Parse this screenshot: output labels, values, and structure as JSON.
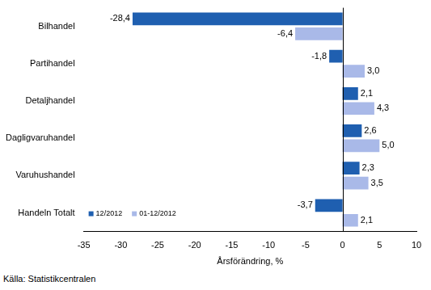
{
  "chart_data": {
    "type": "bar",
    "orientation": "horizontal",
    "categories": [
      "Bilhandel",
      "Partihandel",
      "Detaljhandel",
      "Dagligvaruhandel",
      "Varuhushandel",
      "Handeln Totalt"
    ],
    "series": [
      {
        "name": "12/2012",
        "color": "#1f5fb0",
        "values": [
          -28.4,
          -1.8,
          2.1,
          2.6,
          2.3,
          -3.7
        ],
        "value_labels": [
          "-28,4",
          "-1,8",
          "2,1",
          "2,6",
          "2,3",
          "-3,7"
        ]
      },
      {
        "name": "01-12/2012",
        "color": "#a9b9e8",
        "values": [
          -6.4,
          3.0,
          4.3,
          5.0,
          3.5,
          2.1
        ],
        "value_labels": [
          "-6,4",
          "3,0",
          "4,3",
          "5,0",
          "3,5",
          "2,1"
        ]
      }
    ],
    "x_label": "Årsförändring, %",
    "xlim": [
      -35,
      10
    ],
    "xticks": [
      -35,
      -30,
      -25,
      -20,
      -15,
      -10,
      -5,
      0,
      5,
      10
    ],
    "grid": false,
    "legend": "lower left",
    "data_labels": true,
    "annotations": [
      "Källa: Statistikcentralen"
    ]
  }
}
